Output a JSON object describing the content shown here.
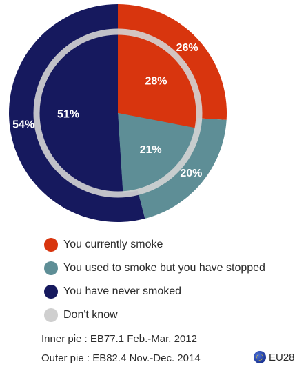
{
  "chart_data": {
    "type": "pie",
    "categories": [
      "You currently smoke",
      "You used to smoke but you have stopped",
      "You have never smoked",
      "Don't know"
    ],
    "colors": [
      "#d8350e",
      "#5e8e96",
      "#16195e",
      "#cfcfcf"
    ],
    "series": [
      {
        "name": "Inner pie",
        "values": [
          28,
          21,
          51,
          0
        ],
        "labels": [
          "28%",
          "21%",
          "51%",
          ""
        ]
      },
      {
        "name": "Outer pie",
        "values": [
          26,
          20,
          54,
          0
        ],
        "labels": [
          "26%",
          "20%",
          "54%",
          ""
        ]
      }
    ],
    "legend_position": "bottom"
  },
  "legend": {
    "items": [
      {
        "label": "You currently smoke",
        "color": "#d8350e"
      },
      {
        "label": "You used to smoke but you have stopped",
        "color": "#5e8e96"
      },
      {
        "label": "You have never smoked",
        "color": "#16195e"
      },
      {
        "label": "Don't know",
        "color": "#cfcfcf"
      }
    ]
  },
  "notes": {
    "inner": "Inner pie : EB77.1 Feb.-Mar. 2012",
    "outer": "Outer pie : EB82.4 Nov.-Dec. 2014"
  },
  "region": {
    "label": "EU28",
    "icon": "eu-flag-icon"
  }
}
